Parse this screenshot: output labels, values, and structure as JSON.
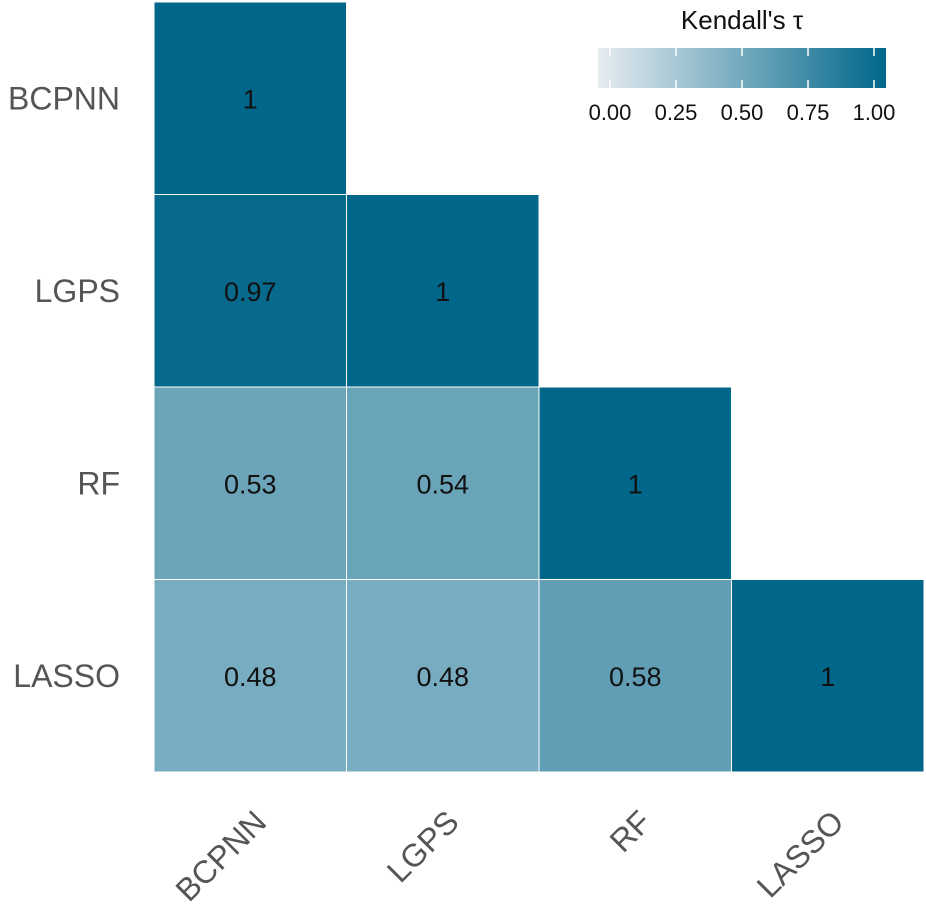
{
  "chart_data": {
    "type": "heatmap",
    "title": "",
    "xlabel": "",
    "ylabel": "",
    "categories_x": [
      "BCPNN",
      "LGPS",
      "RF",
      "LASSO"
    ],
    "categories_y": [
      "BCPNN",
      "LGPS",
      "RF",
      "LASSO"
    ],
    "cells": [
      {
        "x": "BCPNN",
        "y": "BCPNN",
        "value": 1,
        "label": "1"
      },
      {
        "x": "BCPNN",
        "y": "LGPS",
        "value": 0.97,
        "label": "0.97"
      },
      {
        "x": "LGPS",
        "y": "LGPS",
        "value": 1,
        "label": "1"
      },
      {
        "x": "BCPNN",
        "y": "RF",
        "value": 0.53,
        "label": "0.53"
      },
      {
        "x": "LGPS",
        "y": "RF",
        "value": 0.54,
        "label": "0.54"
      },
      {
        "x": "RF",
        "y": "RF",
        "value": 1,
        "label": "1"
      },
      {
        "x": "BCPNN",
        "y": "LASSO",
        "value": 0.48,
        "label": "0.48"
      },
      {
        "x": "LGPS",
        "y": "LASSO",
        "value": 0.48,
        "label": "0.48"
      },
      {
        "x": "RF",
        "y": "LASSO",
        "value": 0.58,
        "label": "0.58"
      },
      {
        "x": "LASSO",
        "y": "LASSO",
        "value": 1,
        "label": "1"
      }
    ],
    "legend": {
      "title": "Kendall's τ",
      "placement": "top-right",
      "ticks": [
        0,
        0.25,
        0.5,
        0.75,
        1
      ],
      "tick_labels": [
        "0.00",
        "0.25",
        "0.50",
        "0.75",
        "1.00"
      ],
      "range": [
        0,
        1
      ]
    },
    "color_low": "#e6ecf1",
    "color_high": "#00668a",
    "grid": false
  }
}
